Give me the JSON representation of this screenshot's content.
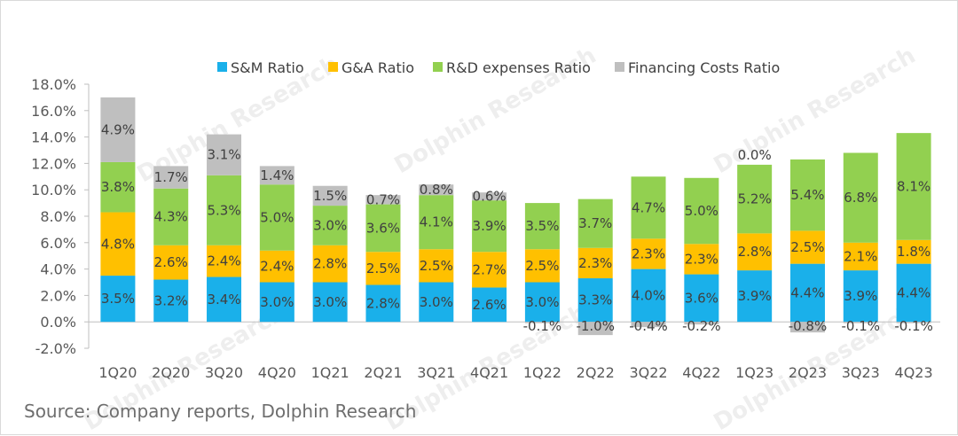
{
  "watermark": "Dolphin Research",
  "footer": {
    "source": "Source: Company reports, Dolphin Research"
  },
  "colors": {
    "sm": "#1ab0ea",
    "ga": "#ffc000",
    "rd": "#92d050",
    "fin": "#bfbfbf"
  },
  "chart_data": {
    "type": "bar",
    "stacked": true,
    "title": "",
    "xlabel": "",
    "ylabel": "",
    "ylim": [
      -2.0,
      18.0
    ],
    "yticks": [
      "-2.0%",
      "0.0%",
      "2.0%",
      "4.0%",
      "6.0%",
      "8.0%",
      "10.0%",
      "12.0%",
      "14.0%",
      "16.0%",
      "18.0%"
    ],
    "legend_position": "top",
    "grid": false,
    "categories": [
      "1Q20",
      "2Q20",
      "3Q20",
      "4Q20",
      "1Q21",
      "2Q21",
      "3Q21",
      "4Q21",
      "1Q22",
      "2Q22",
      "3Q22",
      "4Q22",
      "1Q23",
      "2Q23",
      "3Q23",
      "4Q23"
    ],
    "series": [
      {
        "name": "S&M Ratio",
        "key": "sm",
        "values": [
          3.5,
          3.2,
          3.4,
          3.0,
          3.0,
          2.8,
          3.0,
          2.6,
          3.0,
          3.3,
          4.0,
          3.6,
          3.9,
          4.4,
          3.9,
          4.4
        ],
        "labels": [
          "3.5%",
          "3.2%",
          "3.4%",
          "3.0%",
          "3.0%",
          "2.8%",
          "3.0%",
          "2.6%",
          "3.0%",
          "3.3%",
          "4.0%",
          "3.6%",
          "3.9%",
          "4.4%",
          "3.9%",
          "4.4%"
        ]
      },
      {
        "name": "G&A Ratio",
        "key": "ga",
        "values": [
          4.8,
          2.6,
          2.4,
          2.4,
          2.8,
          2.5,
          2.5,
          2.7,
          2.5,
          2.3,
          2.3,
          2.3,
          2.8,
          2.5,
          2.1,
          1.8
        ],
        "labels": [
          "4.8%",
          "2.6%",
          "2.4%",
          "2.4%",
          "2.8%",
          "2.5%",
          "2.5%",
          "2.7%",
          "2.5%",
          "2.3%",
          "2.3%",
          "2.3%",
          "2.8%",
          "2.5%",
          "2.1%",
          "1.8%"
        ]
      },
      {
        "name": "R&D expenses Ratio",
        "key": "rd",
        "values": [
          3.8,
          4.3,
          5.3,
          5.0,
          3.0,
          3.6,
          4.1,
          3.9,
          3.5,
          3.7,
          4.7,
          5.0,
          5.2,
          5.4,
          6.8,
          8.1
        ],
        "labels": [
          "3.8%",
          "4.3%",
          "5.3%",
          "5.0%",
          "3.0%",
          "3.6%",
          "4.1%",
          "3.9%",
          "3.5%",
          "3.7%",
          "4.7%",
          "5.0%",
          "5.2%",
          "5.4%",
          "6.8%",
          "8.1%"
        ]
      },
      {
        "name": "Financing Costs Ratio",
        "key": "fin",
        "values": [
          4.9,
          1.7,
          3.1,
          1.4,
          1.5,
          0.7,
          0.8,
          0.6,
          -0.1,
          -1.0,
          -0.4,
          -0.2,
          0.0,
          -0.8,
          -0.1,
          -0.1
        ],
        "labels": [
          "4.9%",
          "1.7%",
          "3.1%",
          "1.4%",
          "1.5%",
          "0.7%",
          "0.8%",
          "0.6%",
          "-0.1%",
          "-1.0%",
          "-0.4%",
          "-0.2%",
          "0.0%",
          "-0.8%",
          "-0.1%",
          "-0.1%"
        ]
      }
    ]
  }
}
